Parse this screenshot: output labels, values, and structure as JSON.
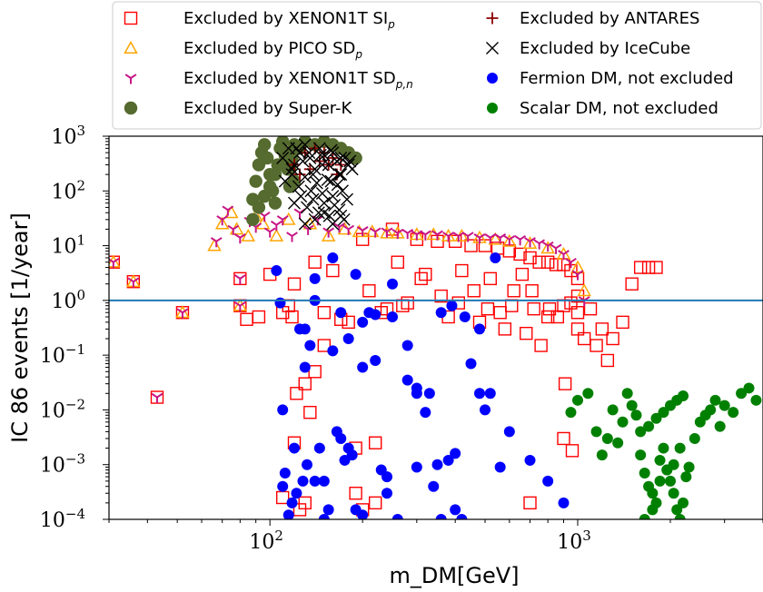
{
  "chart_data": {
    "type": "scatter",
    "xlabel": "m_DM[GeV]",
    "ylabel": "IC 86 events [1/year]",
    "xscale": "log",
    "yscale": "log",
    "xlim": [
      30,
      4000
    ],
    "ylim": [
      0.0001,
      1000
    ],
    "x_ticks": [
      {
        "value": 100,
        "base": "10",
        "exp": "2"
      },
      {
        "value": 1000,
        "base": "10",
        "exp": "3"
      }
    ],
    "y_ticks": [
      {
        "value": 1000,
        "base": "10",
        "exp": "3"
      },
      {
        "value": 100,
        "base": "10",
        "exp": "2"
      },
      {
        "value": 10,
        "base": "10",
        "exp": "1"
      },
      {
        "value": 1,
        "base": "10",
        "exp": "0"
      },
      {
        "value": 0.1,
        "base": "10",
        "exp": "−1"
      },
      {
        "value": 0.01,
        "base": "10",
        "exp": "−2"
      },
      {
        "value": 0.001,
        "base": "10",
        "exp": "−3"
      },
      {
        "value": 0.0001,
        "base": "10",
        "exp": "−4"
      }
    ],
    "reference_line": {
      "y": 1,
      "color": "#1f77b4"
    },
    "legend_position": "top-right",
    "legend": [
      {
        "label": "Excluded by XENON1T SI",
        "sub": "p",
        "marker": "square",
        "color": "#ff0000"
      },
      {
        "label": "Excluded by PICO SD",
        "sub": "p",
        "marker": "triangle",
        "color": "#ffa500"
      },
      {
        "label": "Excluded by XENON1T SD",
        "sub": "p,n",
        "marker": "tri-down",
        "color": "#c71585"
      },
      {
        "label": "Excluded by Super-K",
        "sub": "",
        "marker": "circle-open",
        "color": "#556b2f"
      },
      {
        "label": "Excluded by ANTARES",
        "sub": "",
        "marker": "plus",
        "color": "#8b0000"
      },
      {
        "label": "Excluded by IceCube",
        "sub": "",
        "marker": "x",
        "color": "#000000"
      },
      {
        "label": "Fermion DM, not excluded",
        "sub": "",
        "marker": "dot",
        "color": "#0000ff"
      },
      {
        "label": "Scalar DM, not excluded",
        "sub": "",
        "marker": "dot",
        "color": "#008000"
      }
    ],
    "series": [
      {
        "name": "Excluded by XENON1T SI_p",
        "marker": "square",
        "color": "#ff0000",
        "x": [
          31,
          36,
          43,
          52,
          80,
          80,
          84,
          92,
          100,
          110,
          120,
          140,
          160,
          200,
          250,
          300,
          350,
          400,
          450,
          500,
          550,
          600,
          650,
          700,
          750,
          800,
          850,
          900,
          950,
          1000,
          1100,
          1200,
          1300,
          1400,
          1500,
          1700,
          260,
          320,
          420,
          520,
          620,
          720,
          180,
          230,
          280,
          380,
          480,
          580,
          680,
          1050,
          1150,
          1250,
          150,
          170,
          210,
          240,
          270,
          310,
          360,
          410,
          460,
          510,
          560,
          610,
          660,
          710,
          760,
          810,
          860,
          910,
          960,
          120,
          130,
          110,
          125,
          700,
          800,
          900,
          950,
          1000,
          1000,
          115,
          118,
          122,
          130,
          135,
          150,
          140,
          190,
          200,
          220,
          220,
          190,
          900,
          1000,
          1600,
          1800
        ],
        "y": [
          5,
          2.2,
          0.017,
          0.6,
          2.5,
          0.8,
          0.45,
          0.5,
          3,
          0.6,
          2,
          5,
          3.5,
          13,
          20,
          13,
          12,
          12,
          10,
          10,
          9,
          8,
          7,
          6,
          5,
          5,
          4.5,
          4.5,
          3.5,
          2.5,
          0.7,
          0.3,
          0.2,
          0.4,
          2,
          4,
          5,
          3,
          3.5,
          2.5,
          1.5,
          0.7,
          0.4,
          0.6,
          0.9,
          0.5,
          0.4,
          0.3,
          0.25,
          0.2,
          0.15,
          0.08,
          0.6,
          0.45,
          1.5,
          0.7,
          0.8,
          2.5,
          1.2,
          0.9,
          1.5,
          0.7,
          0.6,
          0.8,
          3,
          1.5,
          0.15,
          0.7,
          0.5,
          0.03,
          0.0018,
          0.0025,
          0.0002,
          0.00025,
          0.00015,
          0.0002,
          0.5,
          0.8,
          0.9,
          0.6,
          1.2,
          0.8,
          0.5,
          0.02,
          0.03,
          0.009,
          0.15,
          0.05,
          0.002,
          0.00015,
          0.0002,
          0.0025,
          0.0003,
          0.003,
          0.3,
          4,
          4
        ]
      },
      {
        "name": "Excluded by PICO SD_p",
        "marker": "triangle",
        "color": "#ffa500",
        "x": [
          31,
          36,
          52,
          80,
          66,
          70,
          75,
          78,
          85,
          90,
          95,
          105,
          115,
          135,
          155,
          175,
          195,
          215,
          240,
          260,
          300,
          340,
          380,
          420,
          480,
          540,
          600,
          700,
          800,
          900,
          1000,
          1050
        ],
        "y": [
          5,
          2.2,
          0.6,
          0.8,
          10,
          25,
          40,
          20,
          15,
          35,
          25,
          15,
          30,
          25,
          15,
          20,
          18,
          18,
          17,
          17,
          16,
          16,
          15,
          15,
          14,
          13,
          12,
          11,
          9,
          7,
          4,
          1.5
        ]
      },
      {
        "name": "Excluded by XENON1T SD_p,n",
        "marker": "tri-down",
        "color": "#c71585",
        "x": [
          31,
          36,
          43,
          52,
          80,
          80,
          67,
          70,
          73,
          76,
          80,
          86,
          90,
          96,
          100,
          105,
          110,
          118,
          125,
          133,
          143,
          155,
          168,
          180,
          200,
          220,
          240,
          260,
          280,
          300,
          320,
          350,
          380,
          410,
          440,
          480,
          520,
          560,
          600,
          650,
          700,
          750,
          800,
          850,
          900,
          950,
          1000,
          1050
        ],
        "y": [
          5,
          2.2,
          0.017,
          0.6,
          2.5,
          0.8,
          12,
          30,
          45,
          20,
          14,
          28,
          22,
          35,
          18,
          24,
          30,
          15,
          40,
          20,
          30,
          18,
          22,
          20,
          19,
          18,
          18,
          17,
          17,
          16,
          16,
          16,
          15,
          15,
          15,
          14,
          14,
          14,
          13,
          13,
          12,
          11,
          10,
          9,
          7,
          5,
          3,
          1
        ]
      },
      {
        "name": "Excluded by Super-K",
        "marker": "circle-open",
        "color": "#556b2f",
        "x": [
          88,
          90,
          92,
          94,
          96,
          98,
          100,
          102,
          104,
          106,
          108,
          110,
          112,
          114,
          116,
          118,
          120,
          125,
          130,
          140,
          150,
          160,
          170,
          180,
          190,
          88,
          92,
          96,
          100,
          104,
          108,
          112,
          116,
          120
        ],
        "y": [
          70,
          150,
          300,
          500,
          700,
          400,
          200,
          100,
          60,
          300,
          600,
          800,
          500,
          250,
          120,
          400,
          700,
          600,
          800,
          700,
          800,
          700,
          600,
          500,
          400,
          30,
          50,
          80,
          120,
          200,
          300,
          450,
          250,
          150
        ]
      },
      {
        "name": "Excluded by ANTARES",
        "marker": "plus",
        "color": "#8b0000",
        "x": [
          120,
          130,
          140,
          150,
          160,
          170,
          125,
          135,
          145,
          155,
          165
        ],
        "y": [
          300,
          500,
          600,
          500,
          400,
          300,
          200,
          250,
          350,
          300,
          200
        ]
      },
      {
        "name": "Excluded by IceCube",
        "marker": "x",
        "color": "#000000",
        "x": [
          110,
          115,
          120,
          125,
          130,
          135,
          140,
          145,
          150,
          155,
          160,
          165,
          170,
          175,
          180,
          185,
          112,
          118,
          124,
          130,
          136,
          142,
          148,
          154,
          160,
          166,
          172,
          178,
          120,
          126,
          132,
          138,
          144,
          150,
          156,
          162,
          168,
          174,
          118,
          128,
          138,
          148,
          158,
          168,
          130,
          140,
          150,
          160,
          170,
          122,
          134,
          146,
          158,
          170,
          182
        ],
        "y": [
          400,
          600,
          300,
          500,
          700,
          400,
          250,
          600,
          450,
          300,
          500,
          350,
          200,
          400,
          300,
          250,
          150,
          200,
          120,
          180,
          100,
          140,
          90,
          160,
          80,
          130,
          100,
          70,
          60,
          80,
          50,
          70,
          40,
          60,
          35,
          55,
          45,
          30,
          250,
          350,
          200,
          300,
          150,
          200,
          25,
          30,
          40,
          25,
          35,
          600,
          500,
          450,
          550,
          400,
          350
        ]
      },
      {
        "name": "Fermion DM, not excluded",
        "marker": "dot",
        "color": "#0000ff",
        "x": [
          105,
          108,
          110,
          112,
          115,
          118,
          120,
          122,
          125,
          128,
          130,
          132,
          135,
          140,
          145,
          150,
          155,
          160,
          165,
          170,
          175,
          180,
          185,
          190,
          200,
          210,
          220,
          230,
          240,
          250,
          260,
          280,
          300,
          320,
          340,
          360,
          380,
          400,
          420,
          450,
          480,
          500,
          540,
          560,
          130,
          140,
          160,
          170,
          180,
          200,
          220,
          250,
          280,
          330,
          360,
          390,
          430,
          480,
          520,
          600,
          700,
          800,
          900,
          110,
          150,
          190,
          240,
          300,
          350,
          400,
          140,
          200,
          300
        ],
        "y": [
          3.5,
          0.9,
          0.01,
          0.0007,
          0.00012,
          0.0002,
          0.002,
          0.0003,
          0.3,
          0.0005,
          0.06,
          0.001,
          0.15,
          0.0005,
          0.002,
          0.0001,
          0.00015,
          6,
          0.004,
          0.6,
          0.0012,
          0.2,
          0.0015,
          3,
          0.00012,
          0.6,
          0.55,
          0.0008,
          0.0003,
          0.5,
          0.0001,
          0.035,
          0.02,
          0.009,
          0.0004,
          0.0001,
          0.0012,
          0.00015,
          0.0001,
          0.07,
          0.02,
          0.01,
          6,
          0.0009,
          0.3,
          1,
          0.12,
          0.003,
          0.002,
          0.4,
          0.08,
          2,
          0.15,
          0.02,
          0.6,
          0.8,
          0.5,
          0.3,
          0.02,
          0.004,
          0.0012,
          0.0005,
          0.0002,
          0.0004,
          0.0005,
          0.00015,
          0.0006,
          0.0009,
          0.001,
          0.0016,
          2.5,
          0.06,
          0.025
        ]
      },
      {
        "name": "Scalar DM, not excluded",
        "marker": "dot",
        "color": "#008000",
        "x": [
          950,
          1000,
          1080,
          1150,
          1200,
          1250,
          1300,
          1350,
          1400,
          1450,
          1500,
          1550,
          1600,
          1650,
          1700,
          1750,
          1800,
          1850,
          1900,
          1950,
          2000,
          2050,
          2100,
          2150,
          2200,
          2250,
          2300,
          2400,
          2500,
          2600,
          2700,
          2800,
          2900,
          3000,
          3200,
          3400,
          3600,
          3800,
          1600,
          1700,
          1800,
          1900,
          2000,
          2100,
          2200,
          1650,
          1750,
          1850,
          1950,
          2050,
          2150
        ],
        "y": [
          0.009,
          0.015,
          0.02,
          0.004,
          0.0015,
          0.003,
          0.01,
          0.0025,
          0.006,
          0.02,
          0.012,
          0.008,
          0.0015,
          0.0007,
          0.0004,
          0.0003,
          0.0002,
          0.0012,
          0.002,
          0.0008,
          0.0005,
          0.0003,
          0.00015,
          0.0001,
          0.0002,
          0.0006,
          0.0009,
          0.003,
          0.006,
          0.008,
          0.01,
          0.015,
          0.005,
          0.012,
          0.009,
          0.02,
          0.025,
          0.015,
          0.004,
          0.005,
          0.007,
          0.009,
          0.012,
          0.015,
          0.018,
          0.0001,
          0.00015,
          0.0005,
          0.0008,
          0.001,
          0.002
        ]
      }
    ]
  }
}
